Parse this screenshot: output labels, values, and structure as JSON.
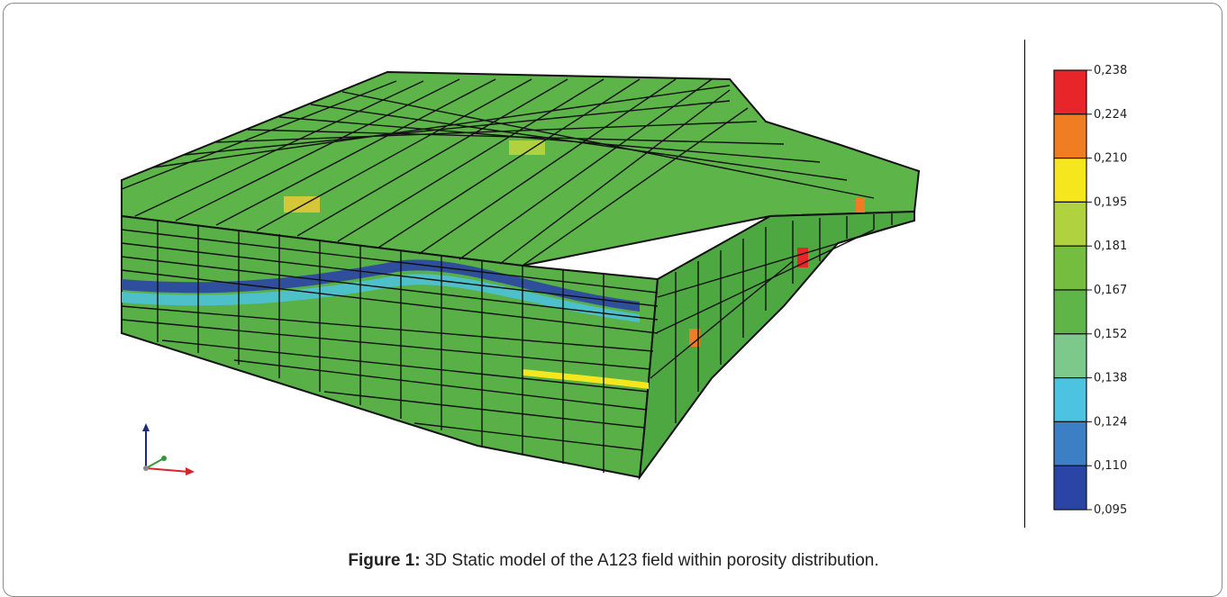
{
  "caption": {
    "label": "Figure 1:",
    "text": " 3D Static model of the A123 field within porosity distribution."
  },
  "legend": {
    "ticks": [
      "0,238",
      "0,224",
      "0,210",
      "0,195",
      "0,181",
      "0,167",
      "0,152",
      "0,138",
      "0,124",
      "0,110",
      "0,095"
    ],
    "colors": [
      "#e8262a",
      "#f07d22",
      "#f6e61e",
      "#b0d23f",
      "#74bd3f",
      "#5fb547",
      "#7dc98c",
      "#4cc3e0",
      "#3c7fc4",
      "#2b45a6"
    ]
  },
  "model": {
    "top_fill": "#5db449",
    "front_fill": "#58b047",
    "side_fill": "#4ea842",
    "grid_color": "#111111"
  }
}
